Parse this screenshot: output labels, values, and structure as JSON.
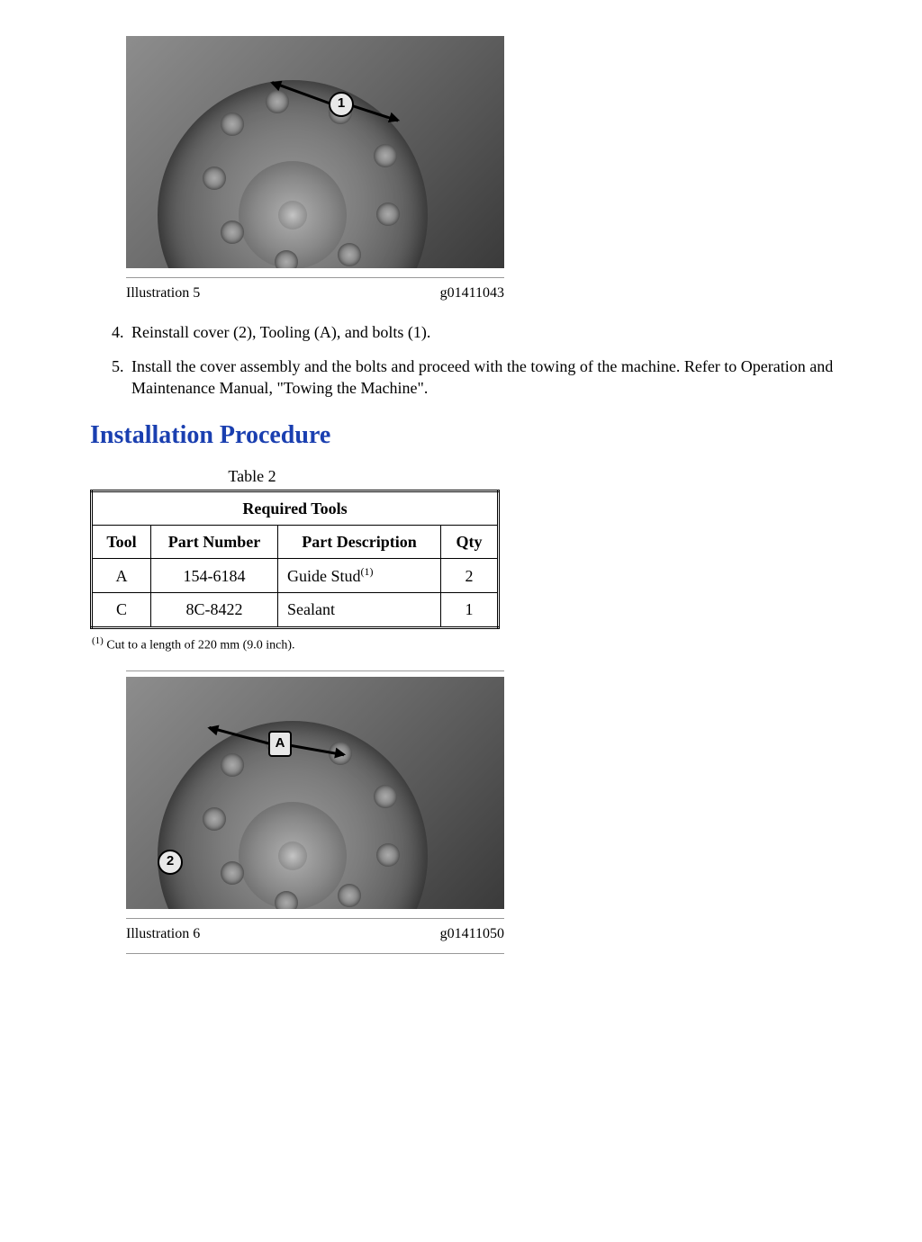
{
  "figure5": {
    "label": "Illustration 5",
    "code": "g01411043",
    "callout": "1"
  },
  "steps": {
    "start": 4,
    "s4": "Reinstall cover (2), Tooling (A), and bolts (1).",
    "s5": "Install the cover assembly and the bolts and proceed with the towing of the machine. Refer to Operation and Maintenance Manual, \"Towing the Machine\"."
  },
  "section_heading": "Installation Procedure",
  "table": {
    "caption": "Table 2",
    "title": "Required Tools",
    "headers": {
      "tool": "Tool",
      "pn": "Part Number",
      "desc": "Part Description",
      "qty": "Qty"
    },
    "rows": [
      {
        "tool": "A",
        "pn": "154-6184",
        "desc": "Guide Stud",
        "note_mark": "(1)",
        "qty": "2"
      },
      {
        "tool": "C",
        "pn": "8C-8422",
        "desc": "Sealant",
        "note_mark": "",
        "qty": "1"
      }
    ],
    "footnote_mark": "(1)",
    "footnote": "Cut to a length of 220 mm (9.0 inch)."
  },
  "figure6": {
    "label": "Illustration 6",
    "code": "g01411050",
    "callout_a": "A",
    "callout_2": "2"
  }
}
